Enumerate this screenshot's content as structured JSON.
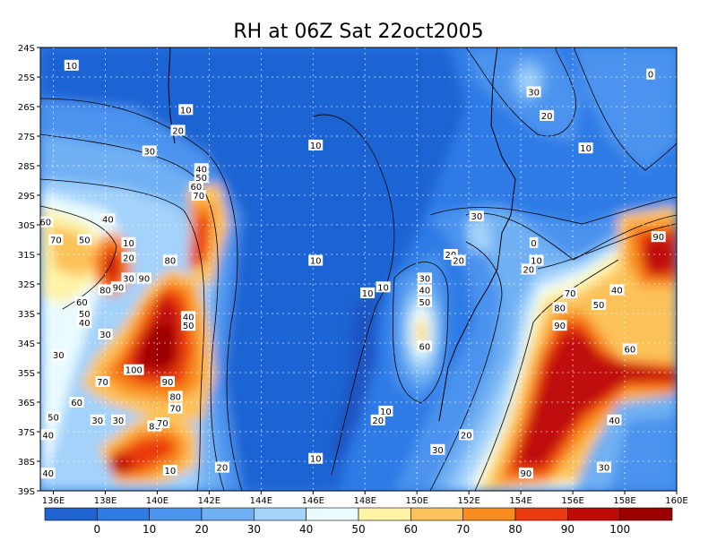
{
  "title": "RH at 06Z Sat 22oct2005",
  "lat_ticks": [
    "24S",
    "25S",
    "26S",
    "27S",
    "28S",
    "29S",
    "30S",
    "31S",
    "32S",
    "33S",
    "34S",
    "35S",
    "36S",
    "37S",
    "38S",
    "39S"
  ],
  "lon_ticks": [
    "136E",
    "138E",
    "140E",
    "142E",
    "144E",
    "146E",
    "148E",
    "150E",
    "152E",
    "154E",
    "156E",
    "158E",
    "160E"
  ],
  "colorbar": {
    "labels": [
      "0",
      "10",
      "20",
      "30",
      "40",
      "50",
      "60",
      "70",
      "80",
      "90",
      "100"
    ],
    "colors": [
      "#1f63d3",
      "#2e7be6",
      "#4b93ee",
      "#6fb0f3",
      "#a3d2fa",
      "#e9fbff",
      "#fff3a6",
      "#fcc25a",
      "#f98c1a",
      "#ea3a10",
      "#c00a0a",
      "#9e0000"
    ]
  },
  "contour_labels": [
    {
      "t": "10",
      "lon": 136.7,
      "lat": -24.6
    },
    {
      "t": "10",
      "lon": 141.1,
      "lat": -26.1
    },
    {
      "t": "20",
      "lon": 140.8,
      "lat": -26.8
    },
    {
      "t": "30",
      "lon": 139.7,
      "lat": -27.5
    },
    {
      "t": "40",
      "lon": 141.7,
      "lat": -28.1
    },
    {
      "t": "50",
      "lon": 141.7,
      "lat": -28.4
    },
    {
      "t": "60",
      "lon": 141.5,
      "lat": -28.7
    },
    {
      "t": "70",
      "lon": 141.6,
      "lat": -29.0
    },
    {
      "t": "40",
      "lon": 138.1,
      "lat": -29.8
    },
    {
      "t": "60",
      "lon": 135.7,
      "lat": -29.9
    },
    {
      "t": "70",
      "lon": 136.1,
      "lat": -30.5
    },
    {
      "t": "50",
      "lon": 137.2,
      "lat": -30.5
    },
    {
      "t": "10",
      "lon": 138.9,
      "lat": -30.6
    },
    {
      "t": "20",
      "lon": 138.9,
      "lat": -31.1
    },
    {
      "t": "80",
      "lon": 140.5,
      "lat": -31.2
    },
    {
      "t": "30",
      "lon": 138.9,
      "lat": -31.8
    },
    {
      "t": "90",
      "lon": 139.5,
      "lat": -31.8
    },
    {
      "t": "90",
      "lon": 138.5,
      "lat": -32.1
    },
    {
      "t": "80",
      "lon": 138.0,
      "lat": -32.2
    },
    {
      "t": "60",
      "lon": 137.1,
      "lat": -32.6
    },
    {
      "t": "50",
      "lon": 137.2,
      "lat": -33.0
    },
    {
      "t": "40",
      "lon": 137.2,
      "lat": -33.3
    },
    {
      "t": "40",
      "lon": 141.2,
      "lat": -33.1
    },
    {
      "t": "50",
      "lon": 141.2,
      "lat": -33.4
    },
    {
      "t": "30",
      "lon": 138.0,
      "lat": -33.7
    },
    {
      "t": "30",
      "lon": 136.2,
      "lat": -34.4
    },
    {
      "t": "100",
      "lon": 139.1,
      "lat": -34.9
    },
    {
      "t": "90",
      "lon": 140.4,
      "lat": -35.3
    },
    {
      "t": "70",
      "lon": 137.9,
      "lat": -35.3
    },
    {
      "t": "80",
      "lon": 140.7,
      "lat": -35.8
    },
    {
      "t": "60",
      "lon": 136.9,
      "lat": -36.0
    },
    {
      "t": "70",
      "lon": 140.7,
      "lat": -36.2
    },
    {
      "t": "50",
      "lon": 136.0,
      "lat": -36.5
    },
    {
      "t": "30",
      "lon": 137.7,
      "lat": -36.6
    },
    {
      "t": "30",
      "lon": 138.5,
      "lat": -36.6
    },
    {
      "t": "80",
      "lon": 139.9,
      "lat": -36.8
    },
    {
      "t": "70",
      "lon": 140.2,
      "lat": -36.7
    },
    {
      "t": "40",
      "lon": 135.8,
      "lat": -37.1
    },
    {
      "t": "40",
      "lon": 135.8,
      "lat": -38.4
    },
    {
      "t": "10",
      "lon": 140.5,
      "lat": -38.3
    },
    {
      "t": "20",
      "lon": 142.5,
      "lat": -38.2
    },
    {
      "t": "10",
      "lon": 146.1,
      "lat": -37.9
    },
    {
      "t": "10",
      "lon": 146.1,
      "lat": -27.3
    },
    {
      "t": "10",
      "lon": 146.1,
      "lat": -31.2
    },
    {
      "t": "10",
      "lon": 148.1,
      "lat": -32.3
    },
    {
      "t": "10",
      "lon": 148.7,
      "lat": -32.1
    },
    {
      "t": "20",
      "lon": 151.3,
      "lat": -31.0
    },
    {
      "t": "20",
      "lon": 151.6,
      "lat": -31.2
    },
    {
      "t": "30",
      "lon": 150.3,
      "lat": -31.8
    },
    {
      "t": "40",
      "lon": 150.3,
      "lat": -32.2
    },
    {
      "t": "50",
      "lon": 150.3,
      "lat": -32.6
    },
    {
      "t": "60",
      "lon": 150.3,
      "lat": -34.1
    },
    {
      "t": "30",
      "lon": 152.3,
      "lat": -29.7
    },
    {
      "t": "0",
      "lon": 154.5,
      "lat": -30.6
    },
    {
      "t": "10",
      "lon": 154.6,
      "lat": -31.2
    },
    {
      "t": "20",
      "lon": 154.3,
      "lat": -31.5
    },
    {
      "t": "30",
      "lon": 154.5,
      "lat": -25.5
    },
    {
      "t": "20",
      "lon": 155.0,
      "lat": -26.3
    },
    {
      "t": "10",
      "lon": 156.5,
      "lat": -27.4
    },
    {
      "t": "0",
      "lon": 159.0,
      "lat": -24.9
    },
    {
      "t": "70",
      "lon": 155.9,
      "lat": -32.3
    },
    {
      "t": "40",
      "lon": 157.7,
      "lat": -32.2
    },
    {
      "t": "50",
      "lon": 157.0,
      "lat": -32.7
    },
    {
      "t": "80",
      "lon": 155.5,
      "lat": -32.8
    },
    {
      "t": "90",
      "lon": 155.5,
      "lat": -33.4
    },
    {
      "t": "60",
      "lon": 158.2,
      "lat": -34.2
    },
    {
      "t": "90",
      "lon": 159.3,
      "lat": -30.4
    },
    {
      "t": "40",
      "lon": 157.6,
      "lat": -36.6
    },
    {
      "t": "30",
      "lon": 157.2,
      "lat": -38.2
    },
    {
      "t": "10",
      "lon": 148.8,
      "lat": -36.3
    },
    {
      "t": "20",
      "lon": 148.5,
      "lat": -36.6
    },
    {
      "t": "30",
      "lon": 150.8,
      "lat": -37.6
    },
    {
      "t": "20",
      "lon": 151.9,
      "lat": -37.1
    },
    {
      "t": "90",
      "lon": 154.2,
      "lat": -38.4
    }
  ]
}
